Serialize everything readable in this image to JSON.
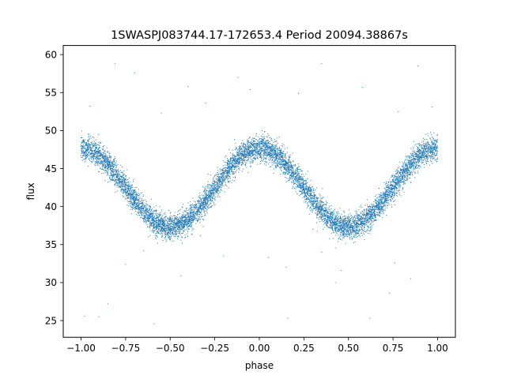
{
  "chart_data": {
    "type": "scatter",
    "title": "1SWASPJ083744.17-172653.4 Period 20094.38867s",
    "xlabel": "phase",
    "ylabel": "flux",
    "xlim": [
      -1.1,
      1.1
    ],
    "ylim": [
      22.8,
      61.2
    ],
    "x_ticks": [
      -1.0,
      -0.75,
      -0.5,
      -0.25,
      0.0,
      0.25,
      0.5,
      0.75,
      1.0
    ],
    "x_tick_labels": [
      "−1.00",
      "−0.75",
      "−0.50",
      "−0.25",
      "0.00",
      "0.25",
      "0.50",
      "0.75",
      "1.00"
    ],
    "y_ticks": [
      25,
      30,
      35,
      40,
      45,
      50,
      55,
      60
    ],
    "y_tick_labels": [
      "25",
      "30",
      "35",
      "40",
      "45",
      "50",
      "55",
      "60"
    ],
    "grid": false,
    "legend": "none",
    "point_color": "#1f77b4",
    "series": [
      {
        "curve": {
          "shape": "sinusoid",
          "period_in_phase": 1.0,
          "mean_flux": 42.5,
          "semi_amplitude": 5.2,
          "maximum_at_phase": [
            -1.0,
            0.0,
            1.0
          ],
          "minimum_at_phase": [
            -0.5,
            0.5
          ]
        },
        "scatter_sigma": 0.8,
        "approx_point_count": 9000,
        "phase_range": [
          -1.0,
          1.0
        ],
        "outliers": [
          [
            -0.98,
            25.6
          ],
          [
            -0.9,
            25.5
          ],
          [
            -0.59,
            24.6
          ],
          [
            0.16,
            25.3
          ],
          [
            0.62,
            25.3
          ],
          [
            -0.81,
            58.8
          ],
          [
            -0.4,
            55.8
          ],
          [
            -0.05,
            55.4
          ],
          [
            0.35,
            58.8
          ],
          [
            0.89,
            58.5
          ],
          [
            -0.12,
            57.0
          ],
          [
            0.58,
            55.7
          ],
          [
            -0.7,
            57.6
          ],
          [
            -0.95,
            53.2
          ],
          [
            0.97,
            53.1
          ],
          [
            -0.3,
            53.6
          ],
          [
            0.22,
            54.9
          ],
          [
            -0.55,
            52.3
          ],
          [
            0.78,
            52.5
          ],
          [
            -0.44,
            30.9
          ],
          [
            0.46,
            31.6
          ],
          [
            -0.75,
            32.4
          ],
          [
            0.76,
            32.6
          ],
          [
            -0.2,
            33.5
          ],
          [
            0.15,
            32.0
          ],
          [
            0.05,
            33.3
          ],
          [
            -0.65,
            34.2
          ],
          [
            0.35,
            34.0
          ],
          [
            -0.85,
            27.2
          ],
          [
            0.85,
            30.5
          ],
          [
            0.73,
            28.6
          ],
          [
            0.43,
            30.0
          ],
          [
            -0.33,
            36.2
          ],
          [
            0.3,
            37.0
          ]
        ]
      }
    ]
  }
}
